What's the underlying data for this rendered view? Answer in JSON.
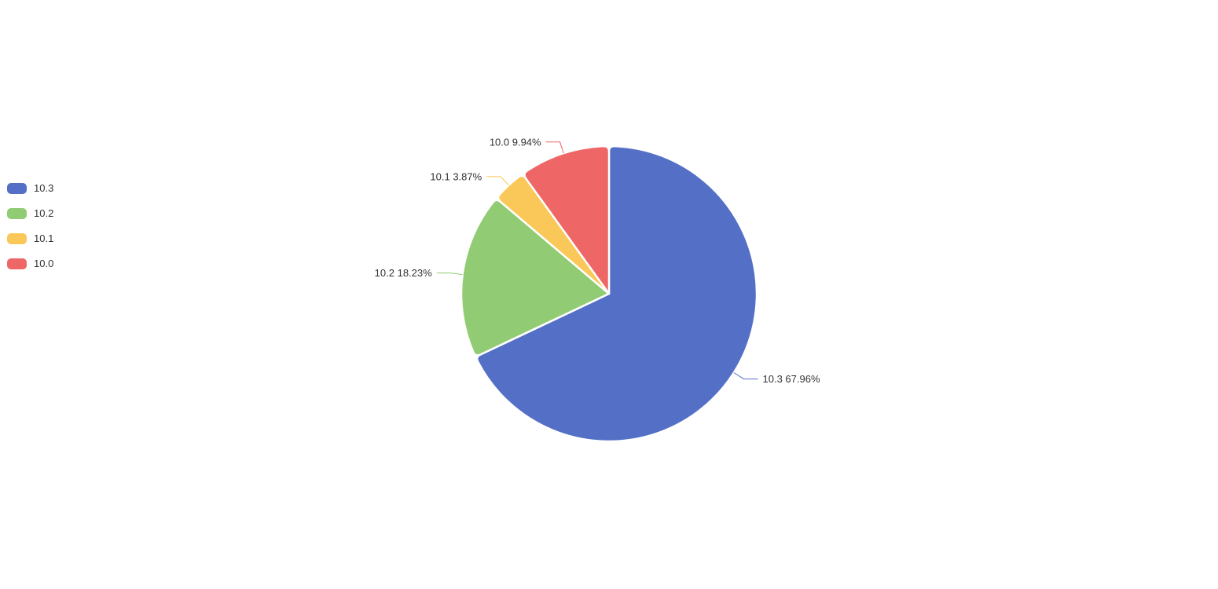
{
  "page": {
    "background": "#ffffff"
  },
  "chart_data": {
    "type": "pie",
    "title": "",
    "start_angle_deg": 90,
    "clockwise": true,
    "label_color": "#333333",
    "slice_border_color": "#ffffff",
    "legend": {
      "position": "left",
      "items": [
        "10.3",
        "10.2",
        "10.1",
        "10.0"
      ]
    },
    "slices": [
      {
        "name": "10.3",
        "percent": 67.96,
        "color": "#5470c6",
        "label": "10.3 67.96%"
      },
      {
        "name": "10.2",
        "percent": 18.23,
        "color": "#91cc75",
        "label": "10.2 18.23%"
      },
      {
        "name": "10.1",
        "percent": 3.87,
        "color": "#fac858",
        "label": "10.1 3.87%"
      },
      {
        "name": "10.0",
        "percent": 9.94,
        "color": "#ee6666",
        "label": "10.0 9.94%"
      }
    ]
  }
}
